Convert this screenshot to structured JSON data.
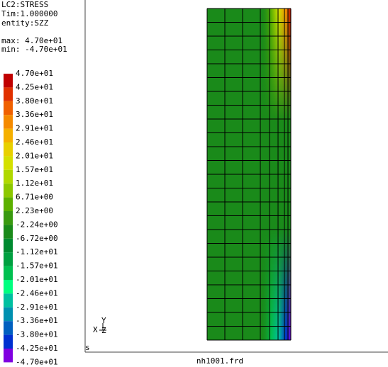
{
  "header": {
    "lines": [
      "LC2:STRESS",
      "Tim:1.000000",
      "entity:SZZ"
    ]
  },
  "range": {
    "max": "max: 4.70e+01",
    "min": "min: -4.70e+01"
  },
  "legend": {
    "labels": [
      "4.70e+01",
      "4.25e+01",
      "3.80e+01",
      "3.36e+01",
      "2.91e+01",
      "2.46e+01",
      "2.01e+01",
      "1.57e+01",
      "1.12e+01",
      "6.71e+00",
      "2.23e+00",
      "-2.24e+00",
      "-6.72e+00",
      "-1.12e+01",
      "-1.57e+01",
      "-2.01e+01",
      "-2.46e+01",
      "-2.91e+01",
      "-3.36e+01",
      "-3.80e+01",
      "-4.25e+01",
      "-4.70e+01"
    ],
    "colors": [
      "#c00000",
      "#e03000",
      "#f06000",
      "#f58a00",
      "#f5b000",
      "#e8d000",
      "#d4e000",
      "#b0d800",
      "#8cc800",
      "#5cb000",
      "#3a9a10",
      "#1a8a1a",
      "#008a30",
      "#00a040",
      "#00c050",
      "#00ff80",
      "#00c0a0",
      "#0090b0",
      "#0060c0",
      "#0030d0",
      "#8000e0"
    ]
  },
  "viewport": {
    "corner_label": "s",
    "axes": {
      "x": "X",
      "y": "Y",
      "z": "Z"
    }
  },
  "footer": {
    "filename": "nh1001.frd"
  }
}
